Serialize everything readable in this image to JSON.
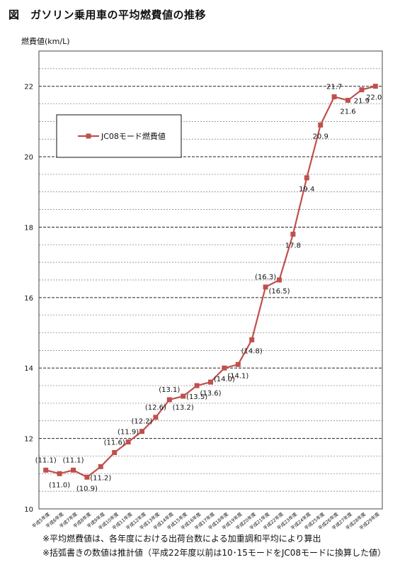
{
  "title": "図　ガソリン乗用車の平均燃費値の推移",
  "chart_data": {
    "type": "line",
    "ylabel": "燃費値(km/L)",
    "ylim": [
      10,
      23
    ],
    "yticks": [
      10,
      12,
      14,
      16,
      18,
      20,
      22
    ],
    "grid": "horizontal, dashed minor every 0.5",
    "legend_position": "top-left",
    "categories": [
      "平成5年度",
      "平成6年度",
      "平成7年度",
      "平成8年度",
      "平成9年度",
      "平成10年度",
      "平成11年度",
      "平成12年度",
      "平成13年度",
      "平成14年度",
      "平成15年度",
      "平成16年度",
      "平成17年度",
      "平成18年度",
      "平成19年度",
      "平成20年度",
      "平成21年度",
      "平成22年度",
      "平成23年度",
      "平成24年度",
      "平成25年度",
      "平成26年度",
      "平成27年度",
      "平成28年度",
      "平成29年度"
    ],
    "series": [
      {
        "name": "JC08モード燃費値",
        "color": "#c0504d",
        "values": [
          11.1,
          11.0,
          11.1,
          10.9,
          11.2,
          11.6,
          11.9,
          12.2,
          12.6,
          13.1,
          13.2,
          13.5,
          13.6,
          14.0,
          14.1,
          14.8,
          16.3,
          16.5,
          17.8,
          19.4,
          20.9,
          21.7,
          21.6,
          21.9,
          22.0
        ],
        "labels": [
          "(11.1)",
          "(11.0)",
          "(11.1)",
          "(10.9)",
          "(11.2)",
          "(11.6)",
          "(11.9)",
          "(12.2)",
          "(12.6)",
          "(13.1)",
          "(13.2)",
          "(13.5)",
          "(13.6)",
          "(14.0)",
          "(14.1)",
          "(14.8)",
          "(16.3)",
          "(16.5)",
          "17.8",
          "19.4",
          "20.9",
          "21.7",
          "21.6",
          "21.9",
          "22.0"
        ]
      }
    ]
  },
  "notes": [
    "※平均燃費値は、各年度における出荷台数による加重調和平均により算出",
    "※括弧書きの数値は推計値（平成22年度以前は10･15モードをJC08モードに換算した値）"
  ]
}
